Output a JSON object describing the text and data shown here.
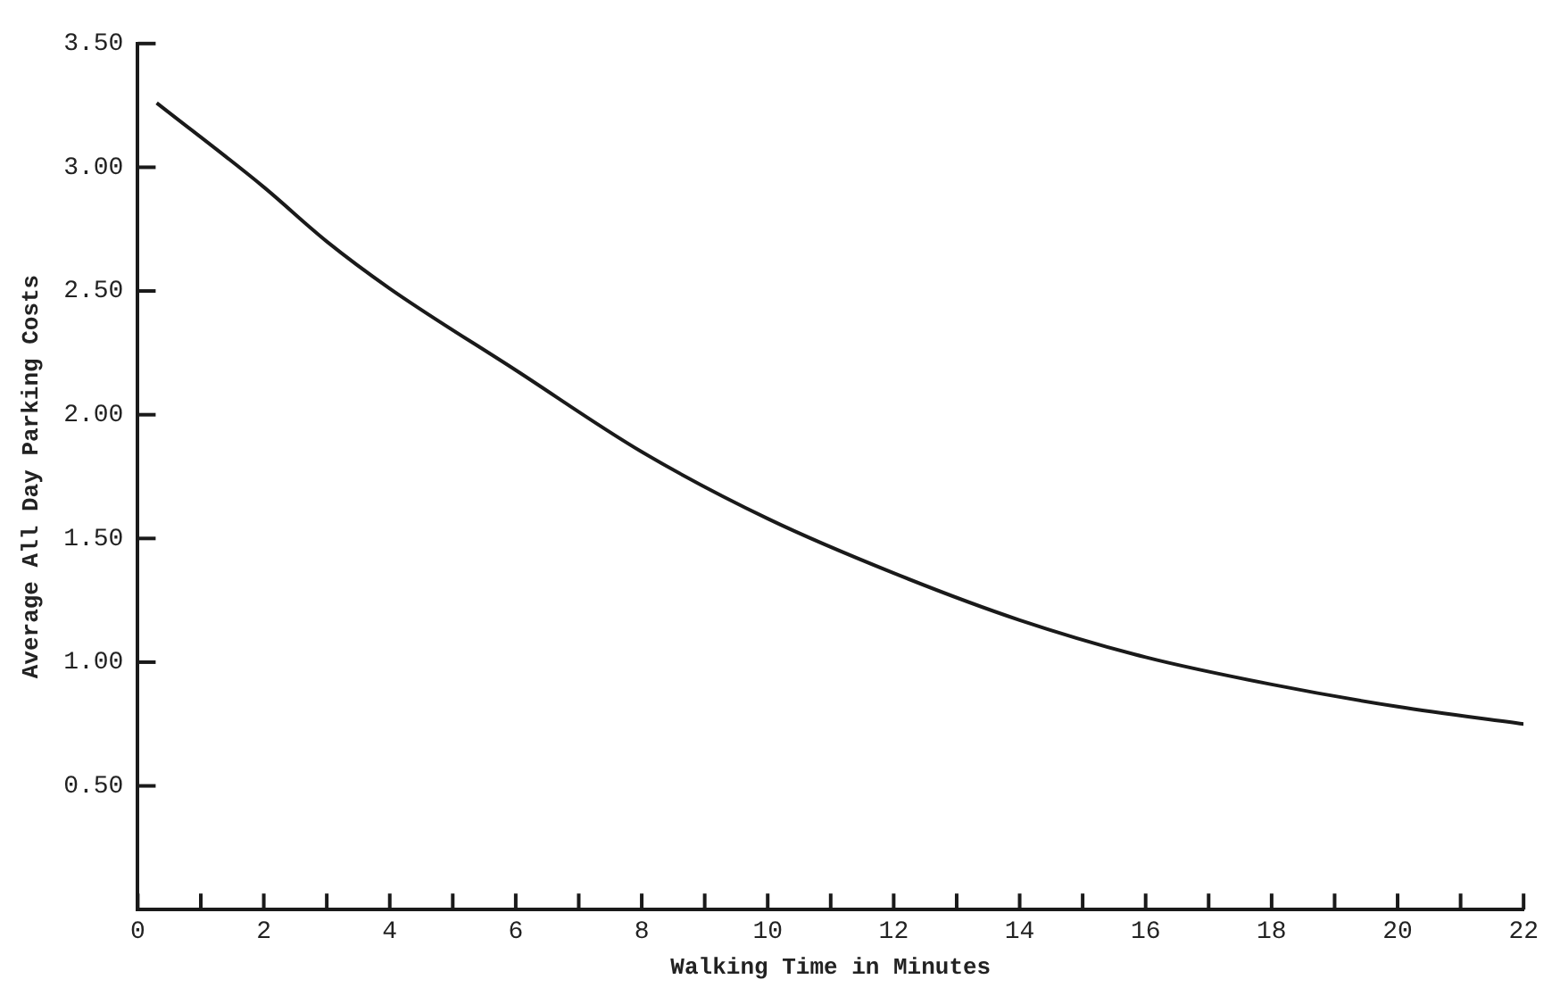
{
  "chart_data": {
    "type": "line",
    "xlabel": "Walking Time in Minutes",
    "ylabel": "Average All Day Parking Costs",
    "series": [
      {
        "color": "#1a1a1a",
        "x": [
          0.3,
          2,
          3,
          4,
          6,
          8,
          10,
          12,
          14,
          16,
          18,
          20,
          22
        ],
        "values": [
          3.26,
          2.92,
          2.7,
          2.51,
          2.18,
          1.85,
          1.58,
          1.36,
          1.17,
          1.02,
          0.91,
          0.82,
          0.75
        ]
      }
    ],
    "xlim": [
      0,
      22
    ],
    "xticks": [
      0,
      {
        "value": 1,
        "label": null
      },
      2,
      {
        "value": 3,
        "label": null
      },
      4,
      {
        "value": 5,
        "label": null
      },
      6,
      {
        "value": 7,
        "label": null
      },
      8,
      {
        "value": 9,
        "label": null
      },
      10,
      {
        "value": 11,
        "label": null
      },
      12,
      {
        "value": 13,
        "label": null
      },
      14,
      {
        "value": 15,
        "label": null
      },
      16,
      {
        "value": 17,
        "label": null
      },
      18,
      {
        "value": 19,
        "label": null
      },
      20,
      {
        "value": 21,
        "label": null
      },
      22
    ],
    "ylim": [
      0,
      3.5
    ],
    "yticks": [
      {
        "value": 0.5,
        "label": "0.50"
      },
      {
        "value": 1,
        "label": "1.00"
      },
      {
        "value": 1.5,
        "label": "1.50"
      },
      {
        "value": 2,
        "label": "2.00"
      },
      {
        "value": 2.5,
        "label": "2.50"
      },
      {
        "value": 3,
        "label": "3.00"
      },
      {
        "value": 3.5,
        "label": "3.50"
      }
    ],
    "grid": false,
    "legend": false,
    "marker": "none",
    "line_style": "solid"
  }
}
